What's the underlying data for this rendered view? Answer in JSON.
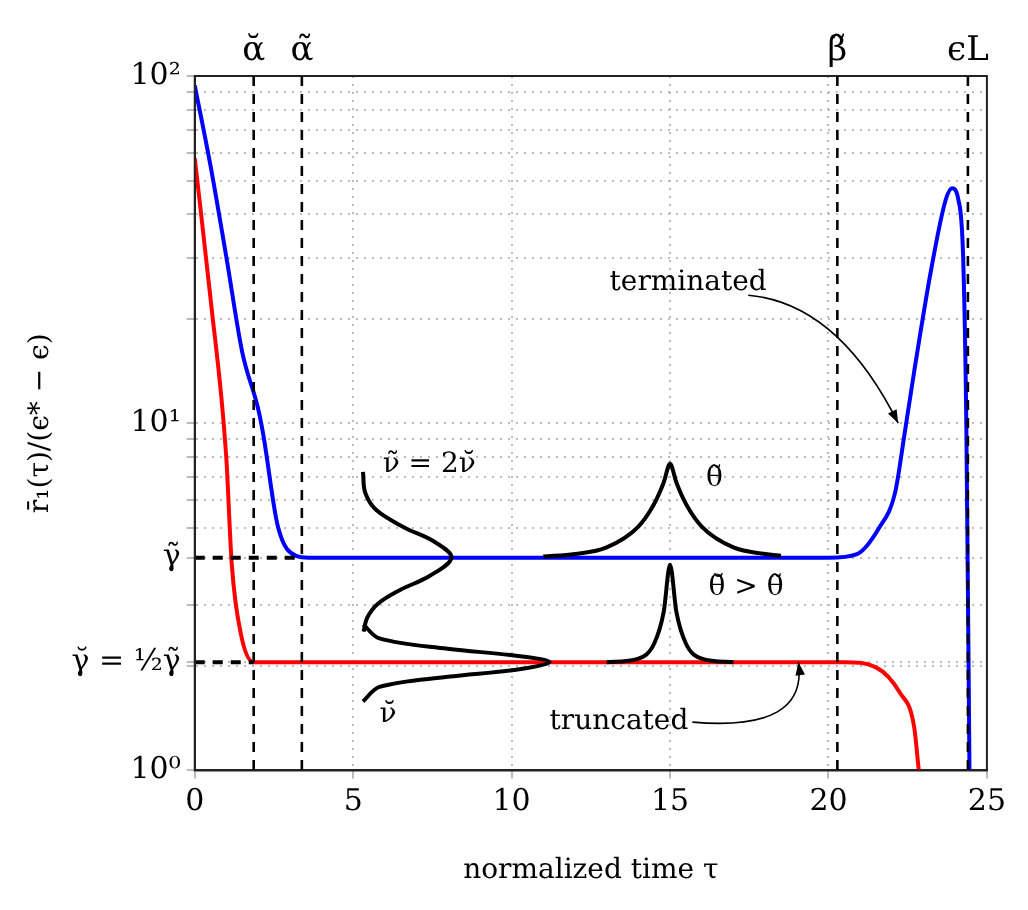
{
  "chart_data": {
    "type": "line",
    "xlabel": "normalized time τ",
    "ylabel": "r̄₁(τ)/(ϵ* − ϵ)",
    "xlim": [
      0,
      25
    ],
    "xticks": [
      0,
      5,
      10,
      15,
      20,
      25
    ],
    "ylim": [
      1,
      100
    ],
    "yticks": [
      {
        "value": 1,
        "label": "10⁰"
      },
      {
        "value": 2,
        "label": null
      },
      {
        "value": 2.05,
        "label": "γ̆ = ½γ̃"
      },
      {
        "value": 3,
        "label": null
      },
      {
        "value": 4.1,
        "label": "γ̃"
      },
      {
        "value": 5,
        "label": null
      },
      {
        "value": 6,
        "label": null
      },
      {
        "value": 7,
        "label": null
      },
      {
        "value": 8,
        "label": null
      },
      {
        "value": 9,
        "label": null
      },
      {
        "value": 10,
        "label": "10¹"
      },
      {
        "value": 20,
        "label": null
      },
      {
        "value": 30,
        "label": null
      },
      {
        "value": 40,
        "label": null
      },
      {
        "value": 50,
        "label": null
      },
      {
        "value": 60,
        "label": null
      },
      {
        "value": 70,
        "label": null
      },
      {
        "value": 80,
        "label": null
      },
      {
        "value": 90,
        "label": null
      },
      {
        "value": 100,
        "label": "10²"
      }
    ],
    "log": "y",
    "grid": true,
    "legend": false,
    "marker": "none",
    "line_style": "solid",
    "series": [
      {
        "color": "#000000",
        "line_style": "dashed",
        "x": [
          0,
          3.38
        ],
        "values": [
          4.1,
          4.1
        ]
      },
      {
        "color": "#000000",
        "line_style": "dashed",
        "x": [
          0,
          1.86
        ],
        "values": [
          2.05,
          2.05
        ]
      },
      {
        "color": "#000000",
        "x": [
          5.31,
          5.38,
          5.73,
          6.61,
          7.54,
          8.1,
          7.41,
          6.48,
          5.78,
          5.44,
          5.33
        ],
        "values": [
          7.24,
          6.31,
          5.62,
          5.01,
          4.57,
          4.1,
          3.63,
          3.31,
          3.02,
          2.75,
          2.51
        ]
      },
      {
        "color": "#000000",
        "x": [
          5.32,
          5.83,
          7.98,
          10.14,
          11.2,
          10.14,
          7.98,
          5.83,
          5.31
        ],
        "values": [
          2.63,
          2.4,
          2.24,
          2.14,
          2.05,
          1.95,
          1.86,
          1.74,
          1.58
        ]
      },
      {
        "color": "#000000",
        "x": [
          11,
          12,
          13,
          14,
          14.5,
          14.8,
          15,
          15.2,
          15.5,
          16,
          17,
          18,
          18.5
        ],
        "values": [
          4.13,
          4.2,
          4.39,
          5.04,
          5.86,
          6.75,
          7.64,
          6.75,
          5.86,
          5.04,
          4.39,
          4.2,
          4.15
        ]
      },
      {
        "color": "#000000",
        "x": [
          13,
          14,
          14.5,
          14.8,
          15,
          15.2,
          15.5,
          16,
          17
        ],
        "values": [
          2.05,
          2.1,
          2.32,
          2.86,
          3.91,
          2.86,
          2.32,
          2.1,
          2.05
        ]
      },
      {
        "color": "#0000ff",
        "x": [
          0,
          0.5,
          1,
          1.5,
          2,
          2.16,
          2.62,
          3.2,
          3.6,
          10,
          20,
          20.9,
          21.6,
          22.1,
          22.4,
          22.7,
          23.25,
          23.7,
          23.9,
          24.1,
          24.25,
          24.35,
          24.45
        ],
        "values": [
          94,
          55,
          30,
          16,
          11,
          9.3,
          5.06,
          4.15,
          4.1,
          4.1,
          4.1,
          4.2,
          5,
          6.3,
          9.3,
          14,
          28,
          44,
          47.5,
          44,
          30,
          10,
          1
        ]
      },
      {
        "color": "#ff0000",
        "x": [
          0,
          0.5,
          0.99,
          1.17,
          1.46,
          1.86,
          10,
          20.5,
          21.5,
          22.26,
          22.7,
          22.85
        ],
        "values": [
          58,
          22.8,
          8.1,
          3.9,
          2.46,
          2.05,
          2.05,
          2.05,
          1.98,
          1.67,
          1.34,
          1
        ]
      }
    ],
    "ref_lines": [
      {
        "axis": "x",
        "value": 1.86,
        "label": "ᾰ",
        "line_style": "dashed"
      },
      {
        "axis": "x",
        "value": 3.38,
        "label": "α̃",
        "line_style": "dashed"
      },
      {
        "axis": "x",
        "value": 20.28,
        "label": "β̃",
        "line_style": "dashed"
      },
      {
        "axis": "x",
        "value": 24.4,
        "label": "ϵL",
        "line_style": "dashed"
      }
    ],
    "annotations": [
      {
        "text": "terminated",
        "x": 22.2,
        "y": 10
      },
      {
        "text": "truncated",
        "x": 19.05,
        "y": 2.05
      },
      "ν̃ = 2ν̆",
      "ν̆",
      "θ̃",
      "θ̆ > θ̃"
    ]
  }
}
